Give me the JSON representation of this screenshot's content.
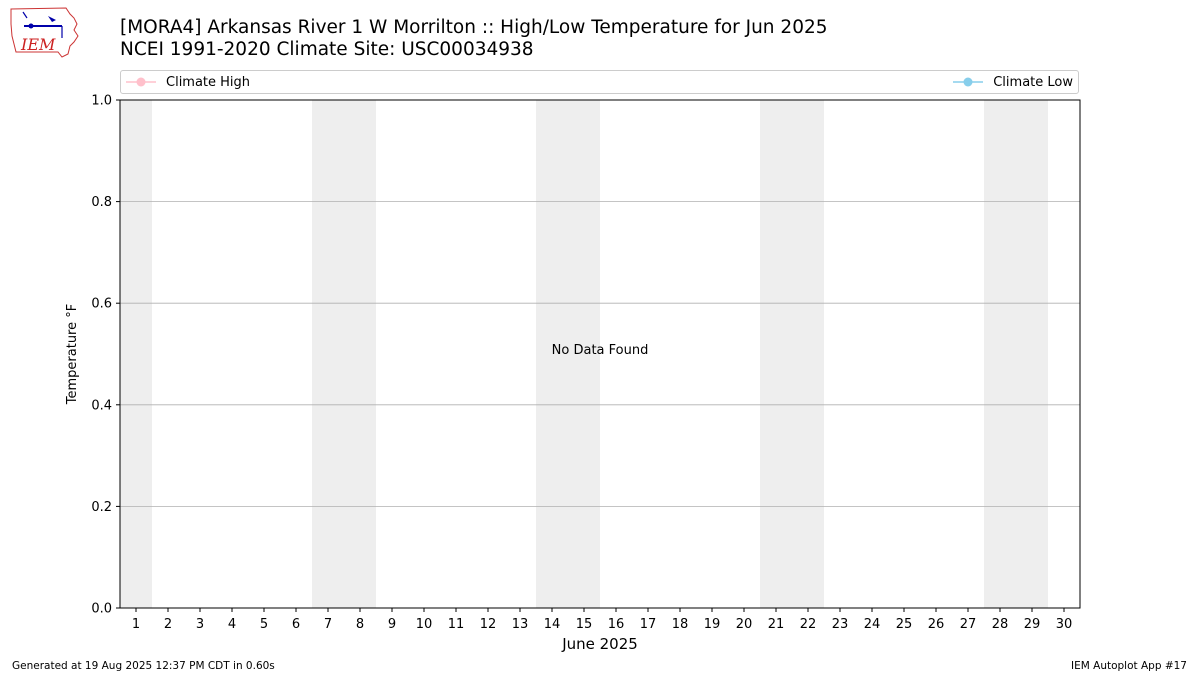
{
  "header": {
    "title_line1": "[MORA4] Arkansas River 1 W Morrilton :: High/Low Temperature for Jun 2025",
    "title_line2": "NCEI 1991-2020 Climate Site: USC00034938"
  },
  "logo": {
    "text": "IEM"
  },
  "footer": {
    "generated": "Generated at 19 Aug 2025 12:37 PM CDT in 0.60s",
    "app": "IEM Autoplot App #17"
  },
  "colors": {
    "climate_high": "#ffc0cb",
    "climate_low": "#87ceeb",
    "weekend_band": "#eeeeee",
    "grid": "#b0b0b0"
  },
  "chart_data": {
    "type": "line",
    "xlabel": "June 2025",
    "ylabel": "Temperature °F",
    "x_ticks": [
      "1",
      "2",
      "3",
      "4",
      "5",
      "6",
      "7",
      "8",
      "9",
      "10",
      "11",
      "12",
      "13",
      "14",
      "15",
      "16",
      "17",
      "18",
      "19",
      "20",
      "21",
      "22",
      "23",
      "24",
      "25",
      "26",
      "27",
      "28",
      "29",
      "30"
    ],
    "xlim": [
      0.5,
      30.5
    ],
    "ylim": [
      0,
      1
    ],
    "y_ticks": [
      "0.0",
      "0.2",
      "0.4",
      "0.6",
      "0.8",
      "1.0"
    ],
    "y_tick_values": [
      0,
      0.2,
      0.4,
      0.6,
      0.8,
      1.0
    ],
    "shaded_days": [
      [
        1,
        1
      ],
      [
        7,
        8
      ],
      [
        14,
        15
      ],
      [
        21,
        22
      ],
      [
        28,
        29
      ]
    ],
    "grid": "horizontal",
    "legend_placement": "top",
    "series": [
      {
        "name": "Climate High",
        "values": []
      },
      {
        "name": "Climate Low",
        "values": []
      }
    ],
    "annotation": "No Data Found"
  }
}
